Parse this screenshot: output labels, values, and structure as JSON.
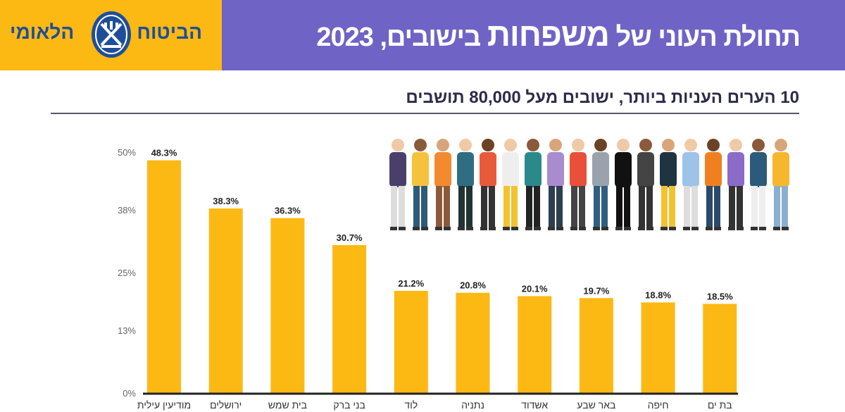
{
  "header": {
    "title_part1": "תחולת העוני של",
    "title_emphasis": "משפחות",
    "title_part2": "בישובים, 2023",
    "logo_text_right": "הביטוח",
    "logo_text_left": "הלאומי",
    "colors": {
      "logo_bg": "#fdb913",
      "title_bg": "#6f63c6",
      "logo_blue": "#1f4e99"
    }
  },
  "chart_data": {
    "type": "bar",
    "title": "10 הערים העניות ביותר, ישובים מעל 80,000 תושבים",
    "categories": [
      "מודיעין עילית",
      "ירושלים",
      "בית שמש",
      "בני ברק",
      "לוד",
      "נתניה",
      "אשדוד",
      "באר שבע",
      "חיפה",
      "בת ים"
    ],
    "values": [
      48.3,
      38.3,
      36.3,
      30.7,
      21.2,
      20.8,
      20.1,
      19.7,
      18.8,
      18.5
    ],
    "data_labels": [
      "48.3%",
      "38.3%",
      "36.3%",
      "30.7%",
      "21.2%",
      "20.8%",
      "20.1%",
      "19.7%",
      "18.8%",
      "18.5%"
    ],
    "yticks": [
      0,
      13,
      25,
      38,
      50
    ],
    "ytick_labels": [
      "0%",
      "13%",
      "25%",
      "38%",
      "50%"
    ],
    "ylim": [
      0,
      50
    ],
    "grid": false,
    "bar_color": "#fdb913"
  }
}
